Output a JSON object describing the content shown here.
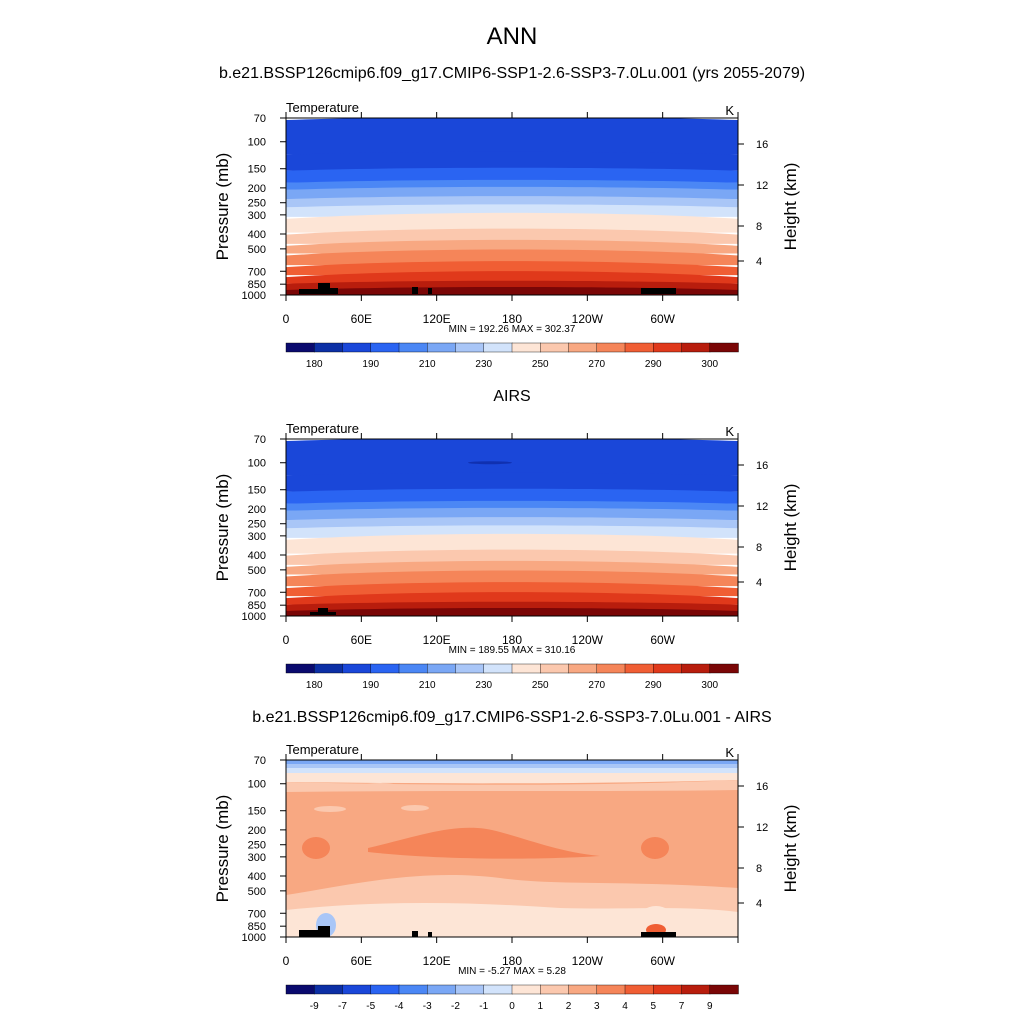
{
  "title": "ANN",
  "colors": {
    "temp_palette": [
      "#0a0a6e",
      "#0c2fa5",
      "#1a47d9",
      "#2a64f2",
      "#4b87f5",
      "#7aa7f5",
      "#a9c6f7",
      "#d2e3fb",
      "#fde5d6",
      "#fbc8ae",
      "#f8a882",
      "#f58559",
      "#f05e34",
      "#e0391b",
      "#b81d0d",
      "#7a0606"
    ],
    "diff_palette": [
      "#0a0a6e",
      "#0c2fa5",
      "#1a47d9",
      "#2a64f2",
      "#4b87f5",
      "#7aa7f5",
      "#a9c6f7",
      "#d2e3fb",
      "#fde5d6",
      "#fbc8ae",
      "#f8a882",
      "#f58559",
      "#f05e34",
      "#e0391b",
      "#b81d0d",
      "#7a0606"
    ],
    "terrain": "#000000"
  },
  "chart_data": [
    {
      "type": "contour",
      "name": "model",
      "title": "b.e21.BSSP126cmip6.f09_g17.CMIP6-SSP1-2.6-SSP3-7.0Lu.001 (yrs 2055-2079)",
      "left_label": "Temperature",
      "right_label": "K",
      "ylabel": "Pressure (mb)",
      "y2label": "Height (km)",
      "xticks": [
        "0",
        "60E",
        "120E",
        "180",
        "120W",
        "60W"
      ],
      "yticks": [
        "70",
        "100",
        "150",
        "200",
        "250",
        "300",
        "400",
        "500",
        "700",
        "850",
        "1000"
      ],
      "y2ticks": [
        "16",
        "12",
        "8",
        "4"
      ],
      "stats": "MIN = 192.26  MAX = 302.37",
      "colorbar_labels": [
        "180",
        "190",
        "210",
        "230",
        "250",
        "270",
        "290",
        "300"
      ],
      "field_levels_from_top": [
        2,
        2,
        3,
        4,
        5,
        6,
        7,
        8,
        9,
        10,
        11,
        12,
        13,
        14,
        15
      ]
    },
    {
      "type": "contour",
      "name": "obs",
      "title": "AIRS",
      "left_label": "Temperature",
      "right_label": "K",
      "ylabel": "Pressure (mb)",
      "y2label": "Height (km)",
      "xticks": [
        "0",
        "60E",
        "120E",
        "180",
        "120W",
        "60W"
      ],
      "yticks": [
        "70",
        "100",
        "150",
        "200",
        "250",
        "300",
        "400",
        "500",
        "700",
        "850",
        "1000"
      ],
      "y2ticks": [
        "16",
        "12",
        "8",
        "4"
      ],
      "stats": "MIN = 189.55  MAX = 310.16",
      "colorbar_labels": [
        "180",
        "190",
        "210",
        "230",
        "250",
        "270",
        "290",
        "300"
      ],
      "field_levels_from_top": [
        2,
        2,
        3,
        4,
        5,
        6,
        7,
        8,
        9,
        10,
        11,
        12,
        13,
        14,
        15
      ]
    },
    {
      "type": "contour",
      "name": "diff",
      "title": "b.e21.BSSP126cmip6.f09_g17.CMIP6-SSP1-2.6-SSP3-7.0Lu.001 - AIRS",
      "left_label": "Temperature",
      "right_label": "K",
      "ylabel": "Pressure (mb)",
      "y2label": "Height (km)",
      "xticks": [
        "0",
        "60E",
        "120E",
        "180",
        "120W",
        "60W"
      ],
      "yticks": [
        "70",
        "100",
        "150",
        "200",
        "250",
        "300",
        "400",
        "500",
        "700",
        "850",
        "1000"
      ],
      "y2ticks": [
        "16",
        "12",
        "8",
        "4"
      ],
      "stats": "MIN =  -5.27  MAX =   5.28",
      "colorbar_labels": [
        "-9",
        "-7",
        "-5",
        "-4",
        "-3",
        "-2",
        "-1",
        "0",
        "1",
        "2",
        "3",
        "4",
        "5",
        "7",
        "9"
      ]
    }
  ]
}
